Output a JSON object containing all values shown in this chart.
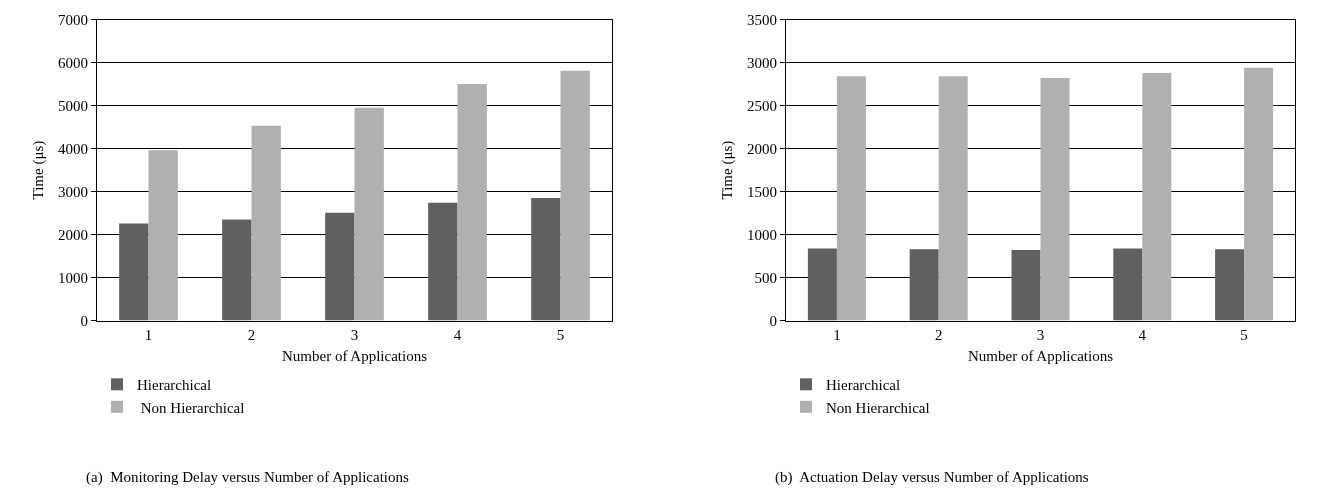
{
  "chart_data": [
    {
      "type": "bar",
      "xlabel": "Number of Applications",
      "ylabel": "Time (μs)",
      "categories": [
        "1",
        "2",
        "3",
        "4",
        "5"
      ],
      "series": [
        {
          "name": "Hierarchical",
          "color": "#606060",
          "values": [
            2260,
            2350,
            2510,
            2740,
            2850
          ]
        },
        {
          "name": " Non Hierarchical",
          "color": "#b0b0b0",
          "values": [
            3960,
            4530,
            4950,
            5500,
            5810
          ]
        }
      ],
      "ylim": [
        0,
        7000
      ],
      "yticks": [
        0,
        1000,
        2000,
        3000,
        4000,
        5000,
        6000,
        7000
      ],
      "grid": "y",
      "legend": "bottom left",
      "annotations": [
        "(a)  Monitoring Delay versus Number of Applications"
      ]
    },
    {
      "type": "bar",
      "xlabel": "Number of Applications",
      "ylabel": "Time (μs)",
      "categories": [
        "1",
        "2",
        "3",
        "4",
        "5"
      ],
      "series": [
        {
          "name": "Hierarchical",
          "color": "#606060",
          "values": [
            840,
            830,
            820,
            840,
            830
          ]
        },
        {
          "name": "Non Hierarchical",
          "color": "#b0b0b0",
          "values": [
            2840,
            2840,
            2820,
            2880,
            2940
          ]
        }
      ],
      "ylim": [
        0,
        3500
      ],
      "yticks": [
        0,
        500,
        1000,
        1500,
        2000,
        2500,
        3000,
        3500
      ],
      "grid": "y",
      "legend": "bottom left",
      "annotations": [
        "(b)  Actuation Delay versus Number of Applications"
      ]
    }
  ]
}
